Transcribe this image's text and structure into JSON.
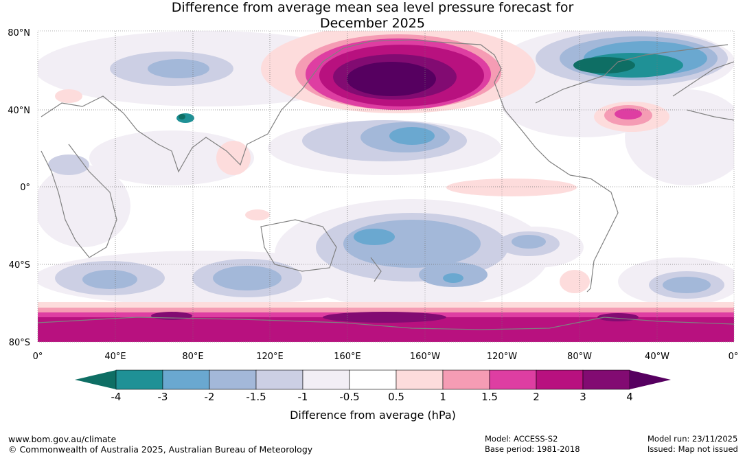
{
  "title": {
    "line1": "Difference from average mean sea level pressure forecast for",
    "line2": "December 2025"
  },
  "axes": {
    "lat_labels": [
      "80°N",
      "40°N",
      "0°",
      "40°S",
      "80°S"
    ],
    "lon_labels": [
      "0°",
      "40°E",
      "80°E",
      "120°E",
      "160°E",
      "160°W",
      "120°W",
      "80°W",
      "40°W",
      "0°"
    ]
  },
  "colorbar": {
    "title": "Difference from average (hPa)",
    "tick_labels": [
      "-4",
      "-3",
      "-2",
      "-1.5",
      "-1",
      "-0.5",
      "0.5",
      "1",
      "1.5",
      "2",
      "3",
      "4"
    ],
    "colors": [
      "#0e6e64",
      "#1f9196",
      "#6aa8d0",
      "#a3b8d9",
      "#cccfe4",
      "#f2eef5",
      "#ffffff",
      "#fddcdc",
      "#f59cb4",
      "#de3ea2",
      "#b8117f",
      "#820b72",
      "#560060"
    ]
  },
  "map_fields": [
    {
      "name": "north-pacific-high-anomaly",
      "level": "4"
    },
    {
      "name": "north-canada-low-anomaly",
      "level": "-4"
    },
    {
      "name": "antarctic-high-anomaly",
      "level": "3"
    }
  ],
  "footer": {
    "website": "www.bom.gov.au/climate",
    "copyright": "© Commonwealth of Australia 2025, Australian Bureau of Meteorology",
    "model": "Model: ACCESS-S2",
    "base_period": "Base period: 1981-2018",
    "model_run": "Model run: 23/11/2025",
    "issued": "Issued: Map not issued"
  }
}
